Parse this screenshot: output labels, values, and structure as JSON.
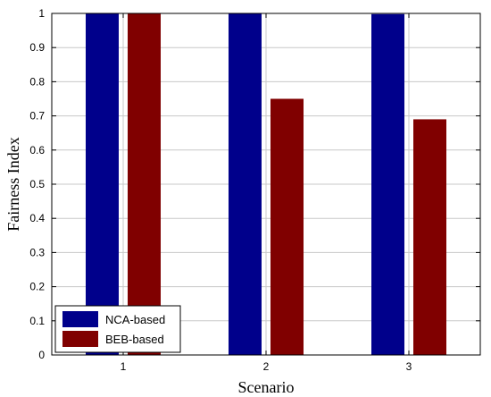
{
  "chart_data": {
    "type": "bar",
    "categories": [
      "1",
      "2",
      "3"
    ],
    "series": [
      {
        "name": "NCA-based",
        "values": [
          1.0,
          1.0,
          0.998
        ],
        "color": "#00008b"
      },
      {
        "name": "BEB-based",
        "values": [
          1.0,
          0.75,
          0.69
        ],
        "color": "#800000"
      }
    ],
    "xlabel": "Scenario",
    "ylabel": "Fairness Index",
    "ylim": [
      0,
      1
    ],
    "yticks": [
      "0",
      "0.1",
      "0.2",
      "0.3",
      "0.4",
      "0.5",
      "0.6",
      "0.7",
      "0.8",
      "0.9",
      "1"
    ],
    "grid": true,
    "legend_position": "bottom-left"
  }
}
